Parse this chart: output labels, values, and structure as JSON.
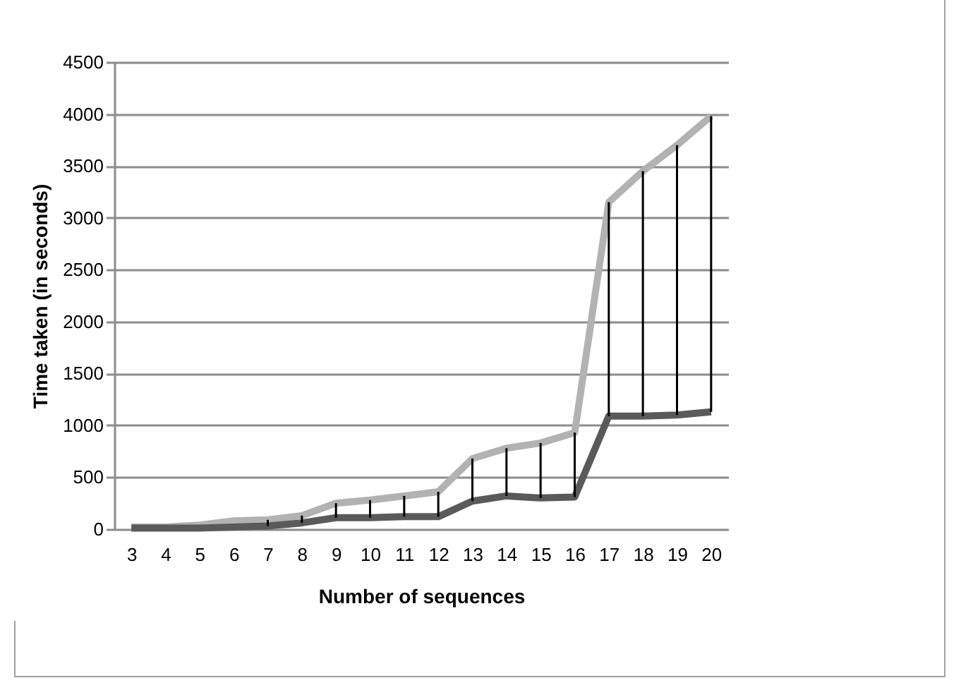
{
  "chart_data": {
    "type": "line",
    "xlabel": "Number of sequences",
    "ylabel": "Time taken (in seconds)",
    "categories": [
      "3",
      "4",
      "5",
      "6",
      "7",
      "8",
      "9",
      "10",
      "11",
      "12",
      "13",
      "14",
      "15",
      "16",
      "17",
      "18",
      "19",
      "20"
    ],
    "series": [
      {
        "color": "#b2b2b2",
        "values": [
          20,
          20,
          40,
          80,
          90,
          130,
          250,
          280,
          320,
          360,
          680,
          780,
          830,
          930,
          3150,
          3450,
          3700,
          3980
        ]
      },
      {
        "color": "#5a5a5a",
        "values": [
          10,
          10,
          10,
          20,
          30,
          60,
          110,
          110,
          120,
          120,
          270,
          320,
          300,
          310,
          1090,
          1090,
          1100,
          1130
        ],
        "errors": [
          null,
          null,
          null,
          null,
          [
            30,
            90
          ],
          [
            60,
            130
          ],
          [
            110,
            250
          ],
          [
            110,
            280
          ],
          [
            120,
            320
          ],
          [
            120,
            360
          ],
          [
            270,
            680
          ],
          [
            320,
            780
          ],
          [
            300,
            830
          ],
          [
            310,
            930
          ],
          [
            1090,
            3150
          ],
          [
            1090,
            3450
          ],
          [
            1100,
            3700
          ],
          [
            1130,
            3980
          ]
        ]
      }
    ],
    "ylim": [
      0,
      4500
    ],
    "yticks": [
      0,
      500,
      1000,
      1500,
      2000,
      2500,
      3000,
      3500,
      4000,
      4500
    ],
    "grid": "y",
    "marker": "none",
    "line_style": "solid"
  }
}
